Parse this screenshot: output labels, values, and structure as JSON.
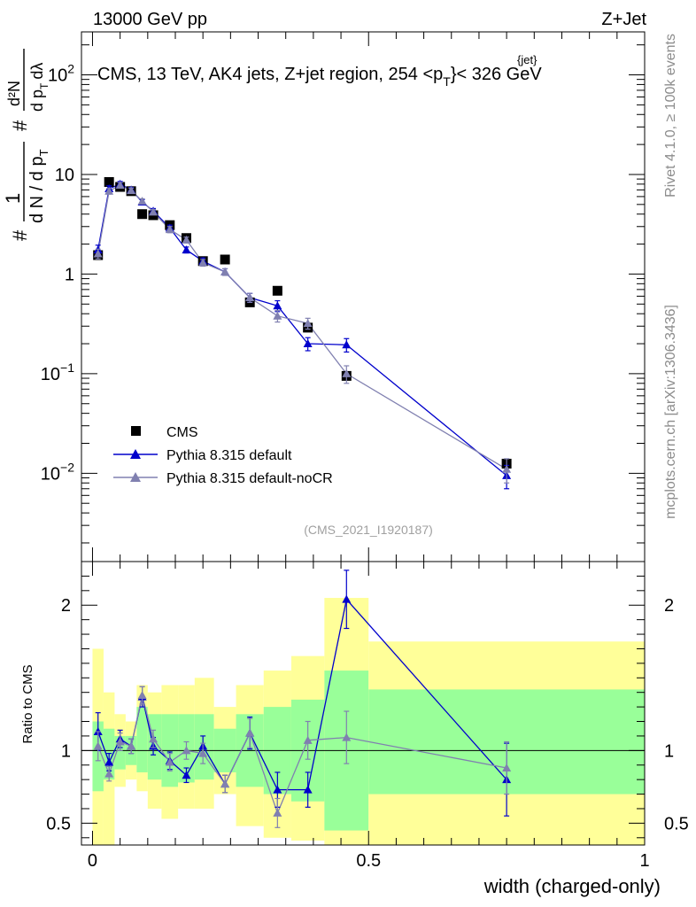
{
  "header": {
    "left": "13000 GeV pp",
    "right": "Z+Jet"
  },
  "side_labels": {
    "rivet": "Rivet 4.1.0, ≥ 100k events",
    "mcplots": "mcplots.cern.ch [arXiv:1306.3436]"
  },
  "colors": {
    "data": "#000000",
    "default": "#0000cc",
    "nocr": "#8080b0",
    "band_outer": "#ffff99",
    "band_inner": "#99ff99"
  },
  "chart_data": [
    {
      "type": "scatter",
      "panel": "main",
      "title": "CMS, 13 TeV, AK4 jets, Z+jet region, 254 <p",
      "title_sup": "{jet}",
      "title_sub": "T",
      "title_tail": "}< 326 GeV",
      "watermark": "(CMS_2021_I1920187)",
      "yscale": "log",
      "ylim": [
        0.0013,
        270
      ],
      "xlim": [
        -0.02,
        1.0
      ],
      "ylabel_parts": {
        "hash": "#",
        "one": "1",
        "dN": "d N / d p",
        "dN_sub": "T",
        "num": "d²N",
        "den": "d p",
        "den_sub": "T",
        "dl": "dλ"
      },
      "yticks": [
        {
          "value": 100,
          "base": "10",
          "exp": "2"
        },
        {
          "value": 10,
          "base": "10",
          "exp": ""
        },
        {
          "value": 1,
          "base": "1",
          "exp": ""
        },
        {
          "value": 0.1,
          "base": "10",
          "exp": "−1"
        },
        {
          "value": 0.01,
          "base": "10",
          "exp": "−2"
        }
      ],
      "legend": [
        {
          "label": "CMS",
          "key": "data"
        },
        {
          "label": "Pythia 8.315 default",
          "key": "default"
        },
        {
          "label": "Pythia 8.315 default-noCR",
          "key": "nocr"
        }
      ],
      "series": [
        {
          "name": "CMS",
          "key": "data",
          "x": [
            0.01,
            0.03,
            0.05,
            0.07,
            0.09,
            0.11,
            0.14,
            0.17,
            0.2,
            0.24,
            0.285,
            0.335,
            0.39,
            0.46,
            0.75
          ],
          "values": [
            1.55,
            8.4,
            7.5,
            6.8,
            4.0,
            3.9,
            3.1,
            2.3,
            1.35,
            1.4,
            0.52,
            0.68,
            0.29,
            0.095,
            0.0125
          ]
        },
        {
          "name": "Pythia 8.315 default",
          "key": "default",
          "x": [
            0.01,
            0.03,
            0.05,
            0.07,
            0.09,
            0.11,
            0.14,
            0.17,
            0.2,
            0.24,
            0.285,
            0.335,
            0.39,
            0.46,
            0.75
          ],
          "values": [
            1.75,
            7.2,
            8.0,
            7.0,
            5.3,
            4.3,
            2.9,
            1.75,
            1.35,
            1.05,
            0.58,
            0.48,
            0.2,
            0.195,
            0.0095
          ],
          "errors": [
            0.2,
            0.5,
            0.5,
            0.4,
            0.3,
            0.25,
            0.2,
            0.12,
            0.1,
            0.08,
            0.06,
            0.06,
            0.03,
            0.03,
            0.0025
          ]
        },
        {
          "name": "Pythia 8.315 default-noCR",
          "key": "nocr",
          "x": [
            0.01,
            0.03,
            0.05,
            0.07,
            0.09,
            0.11,
            0.14,
            0.17,
            0.2,
            0.24,
            0.285,
            0.335,
            0.39,
            0.46,
            0.75
          ],
          "values": [
            1.6,
            6.8,
            7.8,
            6.9,
            5.4,
            4.2,
            2.8,
            2.2,
            1.3,
            1.05,
            0.58,
            0.38,
            0.32,
            0.1,
            0.011
          ],
          "errors": [
            0.18,
            0.45,
            0.5,
            0.4,
            0.3,
            0.25,
            0.2,
            0.15,
            0.1,
            0.08,
            0.06,
            0.05,
            0.04,
            0.02,
            0.003
          ]
        }
      ]
    },
    {
      "type": "scatter",
      "panel": "ratio",
      "ylabel": "Ratio to CMS",
      "xlabel": "width (charged-only)",
      "ylim": [
        0.35,
        2.3
      ],
      "xlim": [
        -0.02,
        1.0
      ],
      "xticks": [
        0,
        0.5,
        1
      ],
      "xtick_labels": [
        "0",
        "0.5",
        "1"
      ],
      "yticks": [
        0.5,
        1,
        2
      ],
      "ytick_labels": [
        "0.5",
        "1",
        "2"
      ],
      "bands": [
        {
          "x0": 0.0,
          "x1": 0.02,
          "outer": [
            0.35,
            1.7
          ],
          "inner": [
            0.72,
            1.2
          ]
        },
        {
          "x0": 0.02,
          "x1": 0.04,
          "outer": [
            0.35,
            1.4
          ],
          "inner": [
            0.8,
            1.15
          ]
        },
        {
          "x0": 0.04,
          "x1": 0.06,
          "outer": [
            0.75,
            1.25
          ],
          "inner": [
            0.87,
            1.1
          ]
        },
        {
          "x0": 0.06,
          "x1": 0.08,
          "outer": [
            0.8,
            1.2
          ],
          "inner": [
            0.9,
            1.1
          ]
        },
        {
          "x0": 0.08,
          "x1": 0.1,
          "outer": [
            0.72,
            1.45
          ],
          "inner": [
            0.85,
            1.3
          ]
        },
        {
          "x0": 0.1,
          "x1": 0.125,
          "outer": [
            0.6,
            1.4
          ],
          "inner": [
            0.8,
            1.25
          ]
        },
        {
          "x0": 0.125,
          "x1": 0.155,
          "outer": [
            0.53,
            1.45
          ],
          "inner": [
            0.75,
            1.25
          ]
        },
        {
          "x0": 0.155,
          "x1": 0.185,
          "outer": [
            0.6,
            1.45
          ],
          "inner": [
            0.78,
            1.25
          ]
        },
        {
          "x0": 0.185,
          "x1": 0.22,
          "outer": [
            0.6,
            1.5
          ],
          "inner": [
            0.8,
            1.25
          ]
        },
        {
          "x0": 0.22,
          "x1": 0.26,
          "outer": [
            0.7,
            1.3
          ],
          "inner": [
            0.85,
            1.15
          ]
        },
        {
          "x0": 0.26,
          "x1": 0.31,
          "outer": [
            0.48,
            1.45
          ],
          "inner": [
            0.75,
            1.25
          ]
        },
        {
          "x0": 0.31,
          "x1": 0.36,
          "outer": [
            0.4,
            1.55
          ],
          "inner": [
            0.7,
            1.3
          ]
        },
        {
          "x0": 0.36,
          "x1": 0.42,
          "outer": [
            0.38,
            1.65
          ],
          "inner": [
            0.65,
            1.35
          ]
        },
        {
          "x0": 0.42,
          "x1": 0.5,
          "outer": [
            0.35,
            2.05
          ],
          "inner": [
            0.45,
            1.55
          ]
        },
        {
          "x0": 0.5,
          "x1": 1.0,
          "outer": [
            0.35,
            1.75
          ],
          "inner": [
            0.7,
            1.42
          ]
        }
      ],
      "reference": 1,
      "series": [
        {
          "name": "Pythia 8.315 default",
          "key": "default",
          "x": [
            0.01,
            0.03,
            0.05,
            0.07,
            0.09,
            0.11,
            0.14,
            0.17,
            0.2,
            0.24,
            0.285,
            0.335,
            0.39,
            0.46,
            0.75
          ],
          "values": [
            1.13,
            0.92,
            1.08,
            1.03,
            1.37,
            1.03,
            0.93,
            0.83,
            1.03,
            0.77,
            1.12,
            0.73,
            0.73,
            2.04,
            0.8
          ],
          "errors": [
            0.13,
            0.06,
            0.06,
            0.05,
            0.07,
            0.06,
            0.06,
            0.05,
            0.07,
            0.06,
            0.11,
            0.12,
            0.12,
            0.2,
            0.25
          ]
        },
        {
          "name": "Pythia 8.315 default-noCR",
          "key": "nocr",
          "x": [
            0.01,
            0.03,
            0.05,
            0.07,
            0.09,
            0.11,
            0.14,
            0.17,
            0.2,
            0.24,
            0.285,
            0.335,
            0.39,
            0.46,
            0.75
          ],
          "values": [
            1.03,
            0.84,
            1.06,
            1.03,
            1.38,
            1.08,
            0.92,
            1.0,
            0.98,
            0.77,
            1.12,
            0.57,
            1.07,
            1.09,
            0.88
          ],
          "errors": [
            0.1,
            0.05,
            0.06,
            0.05,
            0.06,
            0.06,
            0.06,
            0.06,
            0.07,
            0.06,
            0.1,
            0.1,
            0.13,
            0.18,
            0.18
          ]
        }
      ]
    }
  ]
}
